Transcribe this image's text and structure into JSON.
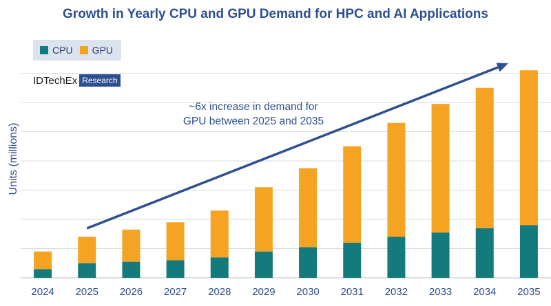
{
  "title": "Growth in Yearly CPU and GPU Demand for HPC and AI Applications",
  "logo": {
    "name": "IDTechEx",
    "tag": "Research"
  },
  "annotation": {
    "line1": "~6x increase in demand for",
    "line2": "GPU between 2025 and 2035"
  },
  "colors": {
    "cpu": "#147a7c",
    "gpu": "#f5a323",
    "grid": "#d9d9d9",
    "arrow": "#2e4f8f",
    "text": "#2e4f8f"
  },
  "chart_data": {
    "type": "bar",
    "stacked": true,
    "title": "Growth in Yearly CPU and GPU Demand for HPC and AI Applications",
    "xlabel": "",
    "ylabel": "Units (millions)",
    "categories": [
      "2024",
      "2025",
      "2026",
      "2027",
      "2028",
      "2029",
      "2030",
      "2031",
      "2032",
      "2033",
      "2034",
      "2035"
    ],
    "series": [
      {
        "name": "CPU",
        "values": [
          3,
          5,
          5.5,
          6,
          7,
          9,
          10.5,
          12,
          14,
          15.5,
          17,
          18
        ]
      },
      {
        "name": "GPU",
        "values": [
          6,
          9,
          11,
          13,
          16,
          22,
          27,
          33,
          39,
          44,
          48,
          53
        ]
      }
    ],
    "ylim": [
      0,
      72
    ],
    "grid": true,
    "legend_position": "top-left"
  }
}
